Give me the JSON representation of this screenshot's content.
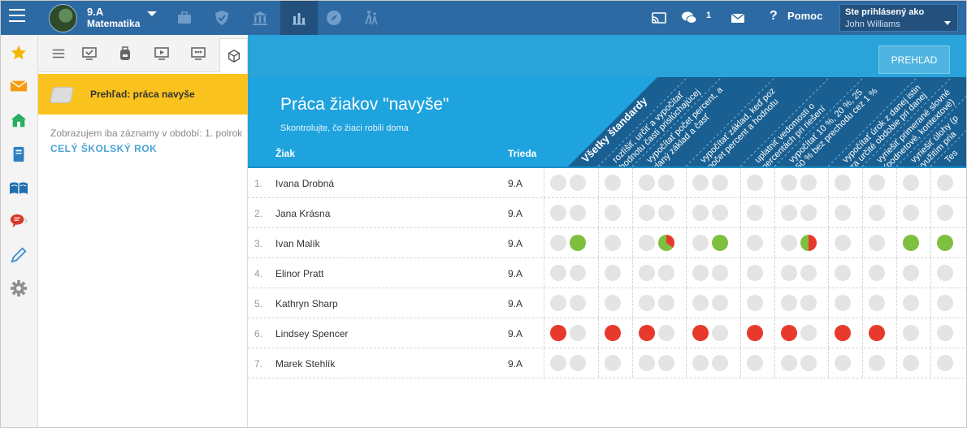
{
  "topbar": {
    "class_name": "9.A",
    "subject_name": "Matematika",
    "nav_icons": [
      "briefcase-icon",
      "shield-check-icon",
      "institution-icon",
      "bar-chart-icon",
      "compass-icon",
      "walking-people-icon"
    ],
    "active_nav": "bar-chart-icon",
    "message_count": "1",
    "help_label": "Pomoc",
    "help_symbol": "?",
    "user_caption": "Ste prihlásený ako",
    "user_name": "John Williams"
  },
  "sidebar_icons": [
    "star-icon",
    "envelope-icon",
    "home-icon",
    "book-icon",
    "open-book-icon",
    "chat-icon",
    "pen-icon",
    "gear-icon"
  ],
  "sub_panel": {
    "tab_icons": [
      "list-icon",
      "monitor-check-icon",
      "backpack-icon",
      "play-screen-icon",
      "monitor-dots-icon",
      "box-icon"
    ],
    "active_tab": "box-icon",
    "highlight_label": "Prehľad: práca navyše",
    "period_note": "Zobrazujem iba záznamy v období: 1. polrok",
    "period_link": "CELÝ ŠKOLSKÝ ROK"
  },
  "main": {
    "overview_button": "PREHĽAD",
    "title": "Práca žiakov \"navyše\"",
    "subtitle": "Skontrolujte, čo žiaci robili doma",
    "col_student": "Žiak",
    "col_class": "Trieda",
    "standards": [
      {
        "line1": "Všetky štandardy",
        "line2": ""
      },
      {
        "line1": "rozlíšiť, určiť a vypočítať",
        "line2": "hodnotu časti prislúchajúcej"
      },
      {
        "line1": "vypočítať počet percent, a",
        "line2": "daný základ a časť"
      },
      {
        "line1": "vypočítať základ, keď poz",
        "line2": "počet percent a hodnotu"
      },
      {
        "line1": "uplatniť vedomosti o",
        "line2": "percentách pri riešení"
      },
      {
        "line1": "vypočítať 10 %, 20 %, 25",
        "line2": "50 % bez prechodu cez 1 %"
      },
      {
        "line1": "vypočítať úrok z danej istin",
        "line2": "za určité obdobie pri danej"
      },
      {
        "line1": "vyriešiť primerané slovné",
        "line2": "(podnetové, kontextové)"
      },
      {
        "line1": "vyriešiť úlohy (p",
        "line2": "využitím pria"
      },
      {
        "line1": "Tes",
        "line2": ""
      }
    ]
  },
  "status_colors": {
    "empty": "#e4e4e4",
    "red": "#e8392d",
    "green": "#7fbf3f"
  },
  "students": [
    {
      "idx": "1.",
      "name": "Ivana Drobná",
      "class": "9.A",
      "results": [
        [
          "empty",
          "empty"
        ],
        [
          "empty"
        ],
        [
          "empty",
          "empty"
        ],
        [
          "empty",
          "empty"
        ],
        [
          "empty"
        ],
        [
          "empty",
          "empty"
        ],
        [
          "empty"
        ],
        [
          "empty"
        ],
        [
          "empty"
        ],
        [
          "empty"
        ]
      ]
    },
    {
      "idx": "2.",
      "name": "Jana Krásna",
      "class": "9.A",
      "results": [
        [
          "empty",
          "empty"
        ],
        [
          "empty"
        ],
        [
          "empty",
          "empty"
        ],
        [
          "empty",
          "empty"
        ],
        [
          "empty"
        ],
        [
          "empty",
          "empty"
        ],
        [
          "empty"
        ],
        [
          "empty"
        ],
        [
          "empty"
        ],
        [
          "empty"
        ]
      ]
    },
    {
      "idx": "3.",
      "name": "Ivan Malík",
      "class": "9.A",
      "results": [
        [
          "empty",
          "green"
        ],
        [
          "empty"
        ],
        [
          "empty",
          "pie:0.35"
        ],
        [
          "empty",
          "green"
        ],
        [
          "empty"
        ],
        [
          "empty",
          "pie:0.5"
        ],
        [
          "empty"
        ],
        [
          "empty"
        ],
        [
          "green"
        ],
        [
          "green"
        ]
      ]
    },
    {
      "idx": "4.",
      "name": "Elinor Pratt",
      "class": "9.A",
      "results": [
        [
          "empty",
          "empty"
        ],
        [
          "empty"
        ],
        [
          "empty",
          "empty"
        ],
        [
          "empty",
          "empty"
        ],
        [
          "empty"
        ],
        [
          "empty",
          "empty"
        ],
        [
          "empty"
        ],
        [
          "empty"
        ],
        [
          "empty"
        ],
        [
          "empty"
        ]
      ]
    },
    {
      "idx": "5.",
      "name": "Kathryn Sharp",
      "class": "9.A",
      "results": [
        [
          "empty",
          "empty"
        ],
        [
          "empty"
        ],
        [
          "empty",
          "empty"
        ],
        [
          "empty",
          "empty"
        ],
        [
          "empty"
        ],
        [
          "empty",
          "empty"
        ],
        [
          "empty"
        ],
        [
          "empty"
        ],
        [
          "empty"
        ],
        [
          "empty"
        ]
      ]
    },
    {
      "idx": "6.",
      "name": "Lindsey Spencer",
      "class": "9.A",
      "results": [
        [
          "red",
          "empty"
        ],
        [
          "red"
        ],
        [
          "red",
          "empty"
        ],
        [
          "red",
          "empty"
        ],
        [
          "red"
        ],
        [
          "red",
          "empty"
        ],
        [
          "red"
        ],
        [
          "red"
        ],
        [
          "empty"
        ],
        [
          "empty"
        ]
      ]
    },
    {
      "idx": "7.",
      "name": "Marek Stehlík",
      "class": "9.A",
      "results": [
        [
          "empty",
          "empty"
        ],
        [
          "empty"
        ],
        [
          "empty",
          "empty"
        ],
        [
          "empty",
          "empty"
        ],
        [
          "empty"
        ],
        [
          "empty",
          "empty"
        ],
        [
          "empty"
        ],
        [
          "empty"
        ],
        [
          "empty"
        ],
        [
          "empty"
        ]
      ]
    }
  ]
}
